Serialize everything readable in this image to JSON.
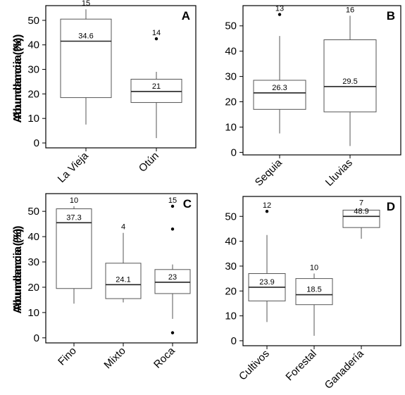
{
  "chart_data": [
    {
      "type": "boxplot",
      "panel_label": "A",
      "ylabel": "Abundancia (%)",
      "yticks": [
        0,
        10,
        20,
        30,
        40,
        50
      ],
      "ylim": [
        -2,
        56
      ],
      "categories": [
        "La Vieja",
        "Otún"
      ],
      "boxes": [
        {
          "min": 7.5,
          "q1": 18.5,
          "median": 41.5,
          "q3": 50.5,
          "max": 54.5,
          "outliers": [],
          "n": "15",
          "mean": "34.6"
        },
        {
          "min": 2,
          "q1": 16.5,
          "median": 21,
          "q3": 26,
          "max": 29,
          "outliers": [
            42.5
          ],
          "n": "14",
          "mean": "21"
        }
      ]
    },
    {
      "type": "boxplot",
      "panel_label": "B",
      "ylabel": "Abundancia (%)",
      "yticks": [
        0,
        10,
        20,
        30,
        40,
        50
      ],
      "ylim": [
        -1,
        58
      ],
      "categories": [
        "Sequia",
        "Lluvias"
      ],
      "boxes": [
        {
          "min": 7.5,
          "q1": 17,
          "median": 23.5,
          "q3": 28.5,
          "max": 46,
          "outliers": [
            54.5
          ],
          "n": "13",
          "mean": "26.3"
        },
        {
          "min": 2.5,
          "q1": 16,
          "median": 26,
          "q3": 44.5,
          "max": 54,
          "outliers": [],
          "n": "16",
          "mean": "29.5"
        }
      ]
    },
    {
      "type": "boxplot",
      "panel_label": "C",
      "ylabel": "Abundancia (%)",
      "yticks": [
        0,
        10,
        20,
        30,
        40,
        50
      ],
      "ylim": [
        -2,
        57
      ],
      "categories": [
        "Fino",
        "Mixto",
        "Roca"
      ],
      "boxes": [
        {
          "min": 13.5,
          "q1": 19.5,
          "median": 45.5,
          "q3": 51,
          "max": 52,
          "outliers": [],
          "n": "10",
          "mean": "37.3"
        },
        {
          "min": 14,
          "q1": 15.5,
          "median": 21,
          "q3": 29.5,
          "max": 41.5,
          "outliers": [],
          "n": "4",
          "mean": "24.1"
        },
        {
          "min": 7.5,
          "q1": 17.5,
          "median": 22,
          "q3": 27,
          "max": 29,
          "outliers": [
            52,
            43,
            2
          ],
          "n": "15",
          "mean": "23"
        }
      ]
    },
    {
      "type": "boxplot",
      "panel_label": "D",
      "ylabel": "Abundancia (%)",
      "yticks": [
        0,
        10,
        20,
        30,
        40,
        50
      ],
      "ylim": [
        -2,
        58
      ],
      "categories": [
        "Cultivos",
        "Forestal",
        "Ganadería"
      ],
      "boxes": [
        {
          "min": 7.5,
          "q1": 16,
          "median": 21.5,
          "q3": 27,
          "max": 42.5,
          "outliers": [
            52
          ],
          "n": "12",
          "mean": "23.9"
        },
        {
          "min": 2,
          "q1": 14.5,
          "median": 18.5,
          "q3": 25,
          "max": 27,
          "outliers": [],
          "n": "10",
          "mean": "18.5"
        },
        {
          "min": 41,
          "q1": 45.5,
          "median": 50,
          "q3": 52.5,
          "max": 53,
          "outliers": [],
          "n": "7",
          "mean": "48.9"
        }
      ]
    }
  ]
}
